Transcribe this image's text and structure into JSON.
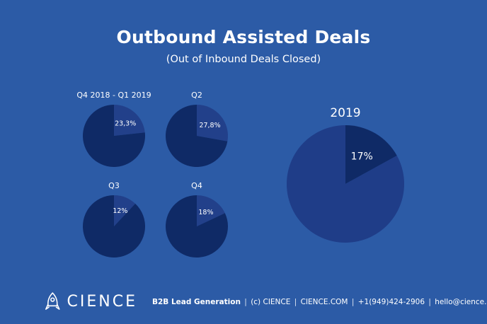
{
  "header": {
    "title": "Outbound Assisted Deals",
    "subtitle": "(Out of Inbound Deals Closed)"
  },
  "colors": {
    "background": "#2c5ba6",
    "pie_main": "#0f2a66",
    "pie_slice": "#22408a",
    "big_main": "#1f3d88",
    "big_slice": "#0f2a66"
  },
  "chart_data": [
    {
      "type": "pie",
      "title": "Q4 2018 - Q1 2019",
      "slices": [
        {
          "label": "23,3%",
          "value": 23.3
        },
        {
          "label": "",
          "value": 76.7
        }
      ]
    },
    {
      "type": "pie",
      "title": "Q2",
      "slices": [
        {
          "label": "27,8%",
          "value": 27.8
        },
        {
          "label": "",
          "value": 72.2
        }
      ]
    },
    {
      "type": "pie",
      "title": "Q3",
      "slices": [
        {
          "label": "12%",
          "value": 12
        },
        {
          "label": "",
          "value": 88
        }
      ]
    },
    {
      "type": "pie",
      "title": "Q4",
      "slices": [
        {
          "label": "18%",
          "value": 18
        },
        {
          "label": "",
          "value": 82
        }
      ]
    },
    {
      "type": "pie",
      "title": "2019",
      "slices": [
        {
          "label": "17%",
          "value": 17
        },
        {
          "label": "",
          "value": 83
        }
      ]
    }
  ],
  "footer": {
    "logo": "CIENCE",
    "logo_icon": "rocket-icon",
    "tagline": "B2B Lead Generation",
    "copyright": "(c) CIENCE",
    "website": "CIENCE.COM",
    "phone": "+1(949)424-2906",
    "email": "hello@cience.com"
  }
}
